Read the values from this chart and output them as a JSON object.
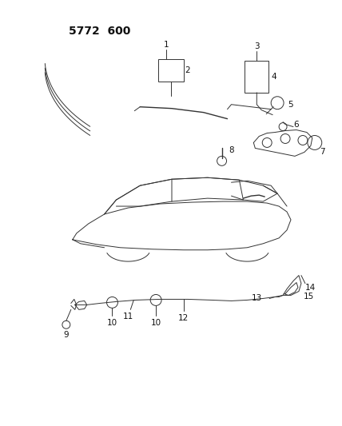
{
  "title": "5772  600",
  "bg_color": "#ffffff",
  "line_color": "#333333",
  "label_color": "#111111",
  "font_size_title": 10,
  "font_size_labels": 7.5
}
